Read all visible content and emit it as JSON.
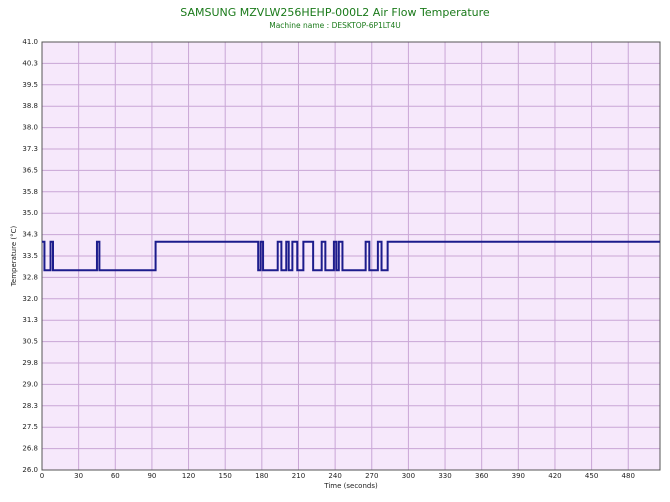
{
  "chart_data": {
    "type": "line",
    "title": "SAMSUNG MZVLW256HEHP-000L2 Air Flow Temperature",
    "subtitle": "Machine name : DESKTOP-6P1LT4U",
    "x_label": "Time (seconds)",
    "y_label": "Temperature (°C)",
    "x": [
      0,
      2,
      2,
      7,
      7,
      9,
      9,
      45,
      45,
      47,
      47,
      93,
      93,
      177,
      177,
      179,
      179,
      181,
      181,
      193,
      193,
      196,
      196,
      200,
      200,
      202,
      202,
      205,
      205,
      209,
      209,
      214,
      214,
      222,
      222,
      229,
      229,
      232,
      232,
      239,
      239,
      241,
      241,
      243,
      243,
      246,
      246,
      265,
      265,
      268,
      268,
      275,
      275,
      278,
      278,
      283,
      283,
      506
    ],
    "series": [
      {
        "color": "#1c1c8c",
        "values": [
          34,
          34,
          33,
          33,
          34,
          34,
          33,
          33,
          34,
          34,
          33,
          33,
          34,
          34,
          33,
          33,
          34,
          34,
          33,
          33,
          34,
          34,
          33,
          33,
          34,
          34,
          33,
          33,
          34,
          34,
          33,
          33,
          34,
          34,
          33,
          33,
          34,
          34,
          33,
          33,
          34,
          34,
          33,
          33,
          34,
          34,
          33,
          33,
          34,
          34,
          33,
          33,
          34,
          34,
          33,
          33,
          34,
          34
        ]
      }
    ],
    "xlim": [
      0,
      506
    ],
    "xticks": [
      0,
      30,
      60,
      90,
      120,
      150,
      180,
      210,
      240,
      270,
      300,
      330,
      360,
      390,
      420,
      450,
      480
    ],
    "ylim": [
      26,
      41
    ],
    "yticks": [
      {
        "value": 26,
        "label": "26.0"
      },
      {
        "value": 26.75,
        "label": "26.8"
      },
      {
        "value": 27.5,
        "label": "27.5"
      },
      {
        "value": 28.25,
        "label": "28.3"
      },
      {
        "value": 29,
        "label": "29.0"
      },
      {
        "value": 29.75,
        "label": "29.8"
      },
      {
        "value": 30.5,
        "label": "30.5"
      },
      {
        "value": 31.25,
        "label": "31.3"
      },
      {
        "value": 32,
        "label": "32.0"
      },
      {
        "value": 32.75,
        "label": "32.8"
      },
      {
        "value": 33.5,
        "label": "33.5"
      },
      {
        "value": 34.25,
        "label": "34.3"
      },
      {
        "value": 35,
        "label": "35.0"
      },
      {
        "value": 35.75,
        "label": "35.8"
      },
      {
        "value": 36.5,
        "label": "36.5"
      },
      {
        "value": 37.25,
        "label": "37.3"
      },
      {
        "value": 38,
        "label": "38.0"
      },
      {
        "value": 38.75,
        "label": "38.8"
      },
      {
        "value": 39.5,
        "label": "39.5"
      },
      {
        "value": 40.25,
        "label": "40.3"
      },
      {
        "value": 41,
        "label": "41.0"
      }
    ],
    "grid": true
  }
}
